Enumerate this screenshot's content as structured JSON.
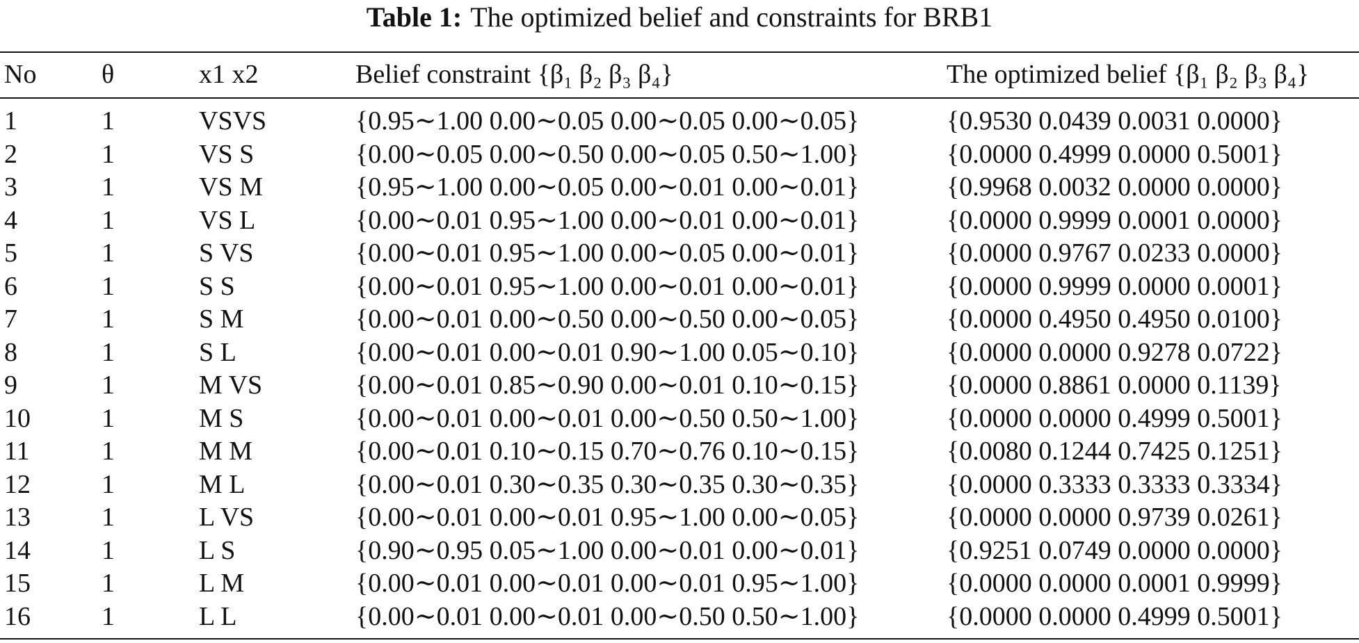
{
  "caption": {
    "label": "Table 1:",
    "text": "The optimized belief and constraints for BRB1"
  },
  "table": {
    "header": [
      "No",
      "θ",
      "x1 x2",
      "Belief constraint {β₁ β₂ β₃ β₄}",
      "The optimized belief {β₁ β₂ β₃ β₄}"
    ],
    "rows": [
      [
        "1",
        "1",
        "VSVS",
        "{0.95∼1.00 0.00∼0.05 0.00∼0.05 0.00∼0.05}",
        "{0.9530 0.0439 0.0031 0.0000}"
      ],
      [
        "2",
        "1",
        "VS S",
        "{0.00∼0.05 0.00∼0.50 0.00∼0.05 0.50∼1.00}",
        "{0.0000 0.4999 0.0000 0.5001}"
      ],
      [
        "3",
        "1",
        "VS M",
        "{0.95∼1.00 0.00∼0.05 0.00∼0.01 0.00∼0.01}",
        "{0.9968 0.0032 0.0000 0.0000}"
      ],
      [
        "4",
        "1",
        "VS L",
        "{0.00∼0.01 0.95∼1.00 0.00∼0.01 0.00∼0.01}",
        "{0.0000 0.9999 0.0001 0.0000}"
      ],
      [
        "5",
        "1",
        "S VS",
        "{0.00∼0.01 0.95∼1.00 0.00∼0.05 0.00∼0.01}",
        "{0.0000 0.9767 0.0233 0.0000}"
      ],
      [
        "6",
        "1",
        "S S",
        "{0.00∼0.01 0.95∼1.00 0.00∼0.01 0.00∼0.01}",
        "{0.0000 0.9999 0.0000 0.0001}"
      ],
      [
        "7",
        "1",
        "S M",
        "{0.00∼0.01 0.00∼0.50 0.00∼0.50 0.00∼0.05}",
        "{0.0000 0.4950 0.4950 0.0100}"
      ],
      [
        "8",
        "1",
        "S L",
        "{0.00∼0.01 0.00∼0.01 0.90∼1.00 0.05∼0.10}",
        "{0.0000 0.0000 0.9278 0.0722}"
      ],
      [
        "9",
        "1",
        "M VS",
        "{0.00∼0.01 0.85∼0.90 0.00∼0.01 0.10∼0.15}",
        "{0.0000 0.8861 0.0000 0.1139}"
      ],
      [
        "10",
        "1",
        "M S",
        "{0.00∼0.01 0.00∼0.01 0.00∼0.50 0.50∼1.00}",
        "{0.0000 0.0000 0.4999 0.5001}"
      ],
      [
        "11",
        "1",
        "M M",
        "{0.00∼0.01 0.10∼0.15 0.70∼0.76 0.10∼0.15}",
        "{0.0080 0.1244 0.7425 0.1251}"
      ],
      [
        "12",
        "1",
        "M L",
        "{0.00∼0.01 0.30∼0.35 0.30∼0.35 0.30∼0.35}",
        "{0.0000 0.3333 0.3333 0.3334}"
      ],
      [
        "13",
        "1",
        "L VS",
        "{0.00∼0.01 0.00∼0.01 0.95∼1.00 0.00∼0.05}",
        "{0.0000 0.0000 0.9739 0.0261}"
      ],
      [
        "14",
        "1",
        "L S",
        "{0.90∼0.95 0.05∼1.00 0.00∼0.01 0.00∼0.01}",
        "{0.9251 0.0749 0.0000 0.0000}"
      ],
      [
        "15",
        "1",
        "L M",
        "{0.00∼0.01 0.00∼0.01 0.00∼0.01 0.95∼1.00}",
        "{0.0000 0.0000 0.0001 0.9999}"
      ],
      [
        "16",
        "1",
        "L L",
        "{0.00∼0.01 0.00∼0.01 0.00∼0.50 0.50∼1.00}",
        "{0.0000 0.0000 0.4999 0.5001}"
      ]
    ]
  }
}
